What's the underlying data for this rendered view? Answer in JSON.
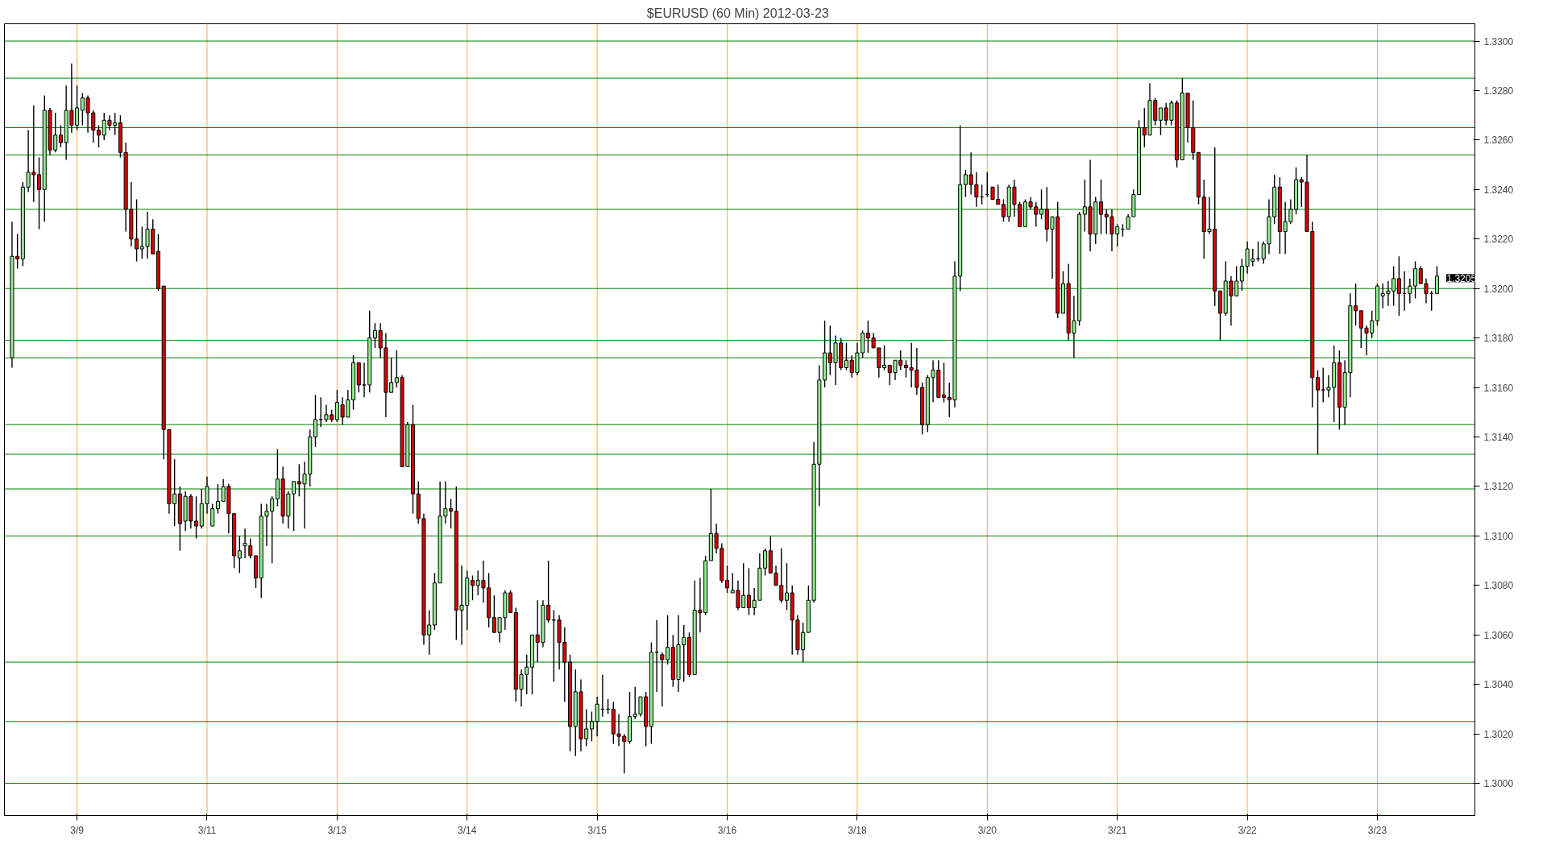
{
  "chart_data": {
    "type": "candlestick",
    "title": "$EURUSD (60 Min)  2012-03-23",
    "categories": [
      null,
      null,
      null,
      null,
      null,
      null,
      null,
      null,
      null,
      null,
      null,
      null,
      "3/9",
      null,
      null,
      null,
      null,
      null,
      null,
      null,
      null,
      null,
      null,
      null,
      null,
      null,
      null,
      null,
      null,
      null,
      null,
      null,
      null,
      null,
      null,
      null,
      "3/11",
      null,
      null,
      null,
      null,
      null,
      null,
      null,
      null,
      null,
      null,
      null,
      null,
      null,
      null,
      null,
      null,
      null,
      null,
      null,
      null,
      null,
      null,
      null,
      "3/13",
      null,
      null,
      null,
      null,
      null,
      null,
      null,
      null,
      null,
      null,
      null,
      null,
      null,
      null,
      null,
      null,
      null,
      null,
      null,
      null,
      null,
      null,
      null,
      "3/14",
      null,
      null,
      null,
      null,
      null,
      null,
      null,
      null,
      null,
      null,
      null,
      null,
      null,
      null,
      null,
      null,
      null,
      null,
      null,
      null,
      null,
      null,
      null,
      "3/15",
      null,
      null,
      null,
      null,
      null,
      null,
      null,
      null,
      null,
      null,
      null,
      null,
      null,
      null,
      null,
      null,
      null,
      null,
      null,
      null,
      null,
      null,
      null,
      "3/16",
      null,
      null,
      null,
      null,
      null,
      null,
      null,
      null,
      null,
      null,
      null,
      null,
      null,
      null,
      null,
      null,
      null,
      null,
      null,
      null,
      null,
      null,
      null,
      "3/18",
      null,
      null,
      null,
      null,
      null,
      null,
      null,
      null,
      null,
      null,
      null,
      null,
      null,
      null,
      null,
      null,
      null,
      null,
      null,
      null,
      null,
      null,
      null,
      "3/20",
      null,
      null,
      null,
      null,
      null,
      null,
      null,
      null,
      null,
      null,
      null,
      null,
      null,
      null,
      null,
      null,
      null,
      null,
      null,
      null,
      null,
      null,
      null,
      "3/21",
      null,
      null,
      null,
      null,
      null,
      null,
      null,
      null,
      null,
      null,
      null,
      null,
      null,
      null,
      null,
      null,
      null,
      null,
      null,
      null,
      null,
      null,
      null,
      "3/22",
      null,
      null,
      null,
      null,
      null,
      null,
      null,
      null,
      null,
      null,
      null,
      null,
      null,
      null,
      null,
      null,
      null,
      null,
      null,
      null,
      null,
      null,
      null,
      "3/23",
      null,
      null,
      null,
      null,
      null,
      null,
      null,
      null,
      null,
      null,
      null
    ],
    "grid": "x",
    "ohlc": [
      [
        1.3172,
        1.3227,
        1.3168,
        1.3213
      ],
      [
        1.3213,
        1.3222,
        1.3208,
        1.3212
      ],
      [
        1.3212,
        1.3243,
        1.3209,
        1.3241
      ],
      [
        1.3241,
        1.3264,
        1.3239,
        1.3247
      ],
      [
        1.3247,
        1.3274,
        1.3235,
        1.3246
      ],
      [
        1.3246,
        1.3253,
        1.3224,
        1.324
      ],
      [
        1.324,
        1.3278,
        1.3227,
        1.3272
      ],
      [
        1.3272,
        1.3273,
        1.3254,
        1.3256
      ],
      [
        1.3256,
        1.3271,
        1.3255,
        1.3262
      ],
      [
        1.3262,
        1.3266,
        1.3257,
        1.3259
      ],
      [
        1.3259,
        1.3282,
        1.3252,
        1.3272
      ],
      [
        1.3272,
        1.3291,
        1.3263,
        1.3266
      ],
      [
        1.3266,
        1.3282,
        1.3264,
        1.3273
      ],
      [
        1.3272,
        1.3279,
        1.3266,
        1.3277
      ],
      [
        1.3277,
        1.3278,
        1.3263,
        1.3271
      ],
      [
        1.3271,
        1.3272,
        1.3259,
        1.3264
      ],
      [
        1.3264,
        1.3266,
        1.3257,
        1.3262
      ],
      [
        1.3262,
        1.3271,
        1.326,
        1.3268
      ],
      [
        1.3268,
        1.327,
        1.3264,
        1.3266
      ],
      [
        1.3266,
        1.3271,
        1.3262,
        1.3267
      ],
      [
        1.3267,
        1.327,
        1.3253,
        1.3255
      ],
      [
        1.3255,
        1.3259,
        1.3223,
        1.3232
      ],
      [
        1.3232,
        1.3243,
        1.3217,
        1.322
      ],
      [
        1.322,
        1.3236,
        1.3211,
        1.3216
      ],
      [
        1.3216,
        1.3225,
        1.3212,
        1.3217
      ],
      [
        1.3217,
        1.3231,
        1.3212,
        1.3224
      ],
      [
        1.3224,
        1.3228,
        1.3214,
        1.3214
      ],
      [
        1.3215,
        1.3222,
        1.3199,
        1.32
      ],
      [
        1.3201,
        1.3201,
        1.3131,
        1.3143
      ],
      [
        1.3143,
        1.3143,
        1.3109,
        1.3113
      ],
      [
        1.3113,
        1.3131,
        1.3104,
        1.3117
      ],
      [
        1.3117,
        1.312,
        1.3094,
        1.3105
      ],
      [
        1.3106,
        1.3118,
        1.3102,
        1.3116
      ],
      [
        1.3116,
        1.3117,
        1.3103,
        1.3106
      ],
      [
        1.3106,
        1.3116,
        1.3099,
        1.3104
      ],
      [
        1.3104,
        1.3119,
        1.3103,
        1.3113
      ],
      [
        1.3113,
        1.3124,
        1.3109,
        1.312
      ],
      [
        1.3104,
        1.3113,
        1.3104,
        1.3111
      ],
      [
        1.3111,
        1.3121,
        1.3109,
        1.3114
      ],
      [
        1.3114,
        1.3123,
        1.3114,
        1.312
      ],
      [
        1.312,
        1.3121,
        1.3101,
        1.3109
      ],
      [
        1.3109,
        1.3109,
        1.3087,
        1.3092
      ],
      [
        1.3091,
        1.31,
        1.3085,
        1.3094
      ],
      [
        1.3096,
        1.3103,
        1.3091,
        1.3097
      ],
      [
        1.3096,
        1.3099,
        1.3091,
        1.3092
      ],
      [
        1.3092,
        1.3092,
        1.3079,
        1.3083
      ],
      [
        1.3083,
        1.3113,
        1.3075,
        1.3108
      ],
      [
        1.3108,
        1.3113,
        1.3096,
        1.311
      ],
      [
        1.311,
        1.3116,
        1.3089,
        1.3115
      ],
      [
        1.3115,
        1.3135,
        1.3112,
        1.3123
      ],
      [
        1.3123,
        1.3128,
        1.3105,
        1.3108
      ],
      [
        1.3108,
        1.3118,
        1.3103,
        1.3117
      ],
      [
        1.3117,
        1.3122,
        1.3102,
        1.3122
      ],
      [
        1.3122,
        1.3129,
        1.3116,
        1.3121
      ],
      [
        1.3121,
        1.313,
        1.3103,
        1.3125
      ],
      [
        1.3125,
        1.3143,
        1.312,
        1.314
      ],
      [
        1.314,
        1.3157,
        1.3136,
        1.3147
      ],
      [
        1.3147,
        1.3156,
        1.3144,
        1.3147
      ],
      [
        1.3147,
        1.3153,
        1.3146,
        1.3149
      ],
      [
        1.3149,
        1.3151,
        1.3146,
        1.3147
      ],
      [
        1.3147,
        1.3159,
        1.3146,
        1.3154
      ],
      [
        1.3153,
        1.3156,
        1.3145,
        1.3148
      ],
      [
        1.3148,
        1.3159,
        1.3148,
        1.3155
      ],
      [
        1.3155,
        1.3173,
        1.3151,
        1.317
      ],
      [
        1.317,
        1.317,
        1.3158,
        1.3161
      ],
      [
        1.3161,
        1.317,
        1.3156,
        1.3161
      ],
      [
        1.3161,
        1.3191,
        1.3158,
        1.318
      ],
      [
        1.318,
        1.3186,
        1.3176,
        1.3183
      ],
      [
        1.3183,
        1.3186,
        1.3172,
        1.3176
      ],
      [
        1.3176,
        1.3182,
        1.3148,
        1.3158
      ],
      [
        1.3158,
        1.3172,
        1.3158,
        1.3162
      ],
      [
        1.3162,
        1.3175,
        1.316,
        1.3164
      ],
      [
        1.3164,
        1.3165,
        1.3128,
        1.3128
      ],
      [
        1.3128,
        1.3146,
        1.3128,
        1.3145
      ],
      [
        1.3145,
        1.3153,
        1.3109,
        1.3117
      ],
      [
        1.3117,
        1.3122,
        1.3105,
        1.3107
      ],
      [
        1.3107,
        1.3109,
        1.3056,
        1.306
      ],
      [
        1.306,
        1.307,
        1.3052,
        1.3064
      ],
      [
        1.3064,
        1.3085,
        1.3062,
        1.3081
      ],
      [
        1.3081,
        1.3122,
        1.3081,
        1.3108
      ],
      [
        1.3108,
        1.3122,
        1.3105,
        1.3111
      ],
      [
        1.3111,
        1.3115,
        1.3103,
        1.311
      ],
      [
        1.311,
        1.312,
        1.3058,
        1.307
      ],
      [
        1.307,
        1.3088,
        1.3056,
        1.3072
      ],
      [
        1.3072,
        1.3086,
        1.3062,
        1.3083
      ],
      [
        1.3082,
        1.3084,
        1.3074,
        1.308
      ],
      [
        1.308,
        1.3086,
        1.3076,
        1.3082
      ],
      [
        1.3082,
        1.309,
        1.3073,
        1.3079
      ],
      [
        1.3079,
        1.3085,
        1.3063,
        1.3067
      ],
      [
        1.3067,
        1.3076,
        1.3061,
        1.3061
      ],
      [
        1.3061,
        1.3067,
        1.3057,
        1.3067
      ],
      [
        1.3067,
        1.3078,
        1.3062,
        1.3077
      ],
      [
        1.3077,
        1.3078,
        1.3069,
        1.3069
      ],
      [
        1.3069,
        1.3071,
        1.3033,
        1.3038
      ],
      [
        1.3038,
        1.3046,
        1.3031,
        1.3044
      ],
      [
        1.3044,
        1.3052,
        1.3036,
        1.3047
      ],
      [
        1.3047,
        1.306,
        1.3036,
        1.306
      ],
      [
        1.306,
        1.3074,
        1.3049,
        1.3057
      ],
      [
        1.3057,
        1.3074,
        1.3055,
        1.3072
      ],
      [
        1.3072,
        1.309,
        1.3065,
        1.3066
      ],
      [
        1.3066,
        1.307,
        1.3041,
        1.3066
      ],
      [
        1.3066,
        1.3068,
        1.3046,
        1.3057
      ],
      [
        1.3057,
        1.3063,
        1.3033,
        1.3049
      ],
      [
        1.3049,
        1.3052,
        1.3013,
        1.3023
      ],
      [
        1.3023,
        1.3046,
        1.3011,
        1.3037
      ],
      [
        1.3037,
        1.3042,
        1.3013,
        1.3018
      ],
      [
        1.3018,
        1.303,
        1.3015,
        1.3022
      ],
      [
        1.3022,
        1.3029,
        1.3017,
        1.3025
      ],
      [
        1.3025,
        1.3035,
        1.3019,
        1.3032
      ],
      [
        1.303,
        1.3044,
        1.3027,
        1.303
      ],
      [
        1.303,
        1.3034,
        1.3028,
        1.303
      ],
      [
        1.303,
        1.3033,
        1.3016,
        1.302
      ],
      [
        1.302,
        1.3028,
        1.3015,
        1.3019
      ],
      [
        1.3019,
        1.302,
        1.3004,
        1.3017
      ],
      [
        1.3017,
        1.3037,
        1.3016,
        1.3027
      ],
      [
        1.3027,
        1.3039,
        1.3026,
        1.3028
      ],
      [
        1.3028,
        1.3035,
        1.3027,
        1.3035
      ],
      [
        1.3035,
        1.3037,
        1.3015,
        1.3023
      ],
      [
        1.3023,
        1.3057,
        1.3016,
        1.3053
      ],
      [
        1.3053,
        1.3066,
        1.3037,
        1.3053
      ],
      [
        1.3052,
        1.3053,
        1.3031,
        1.305
      ],
      [
        1.305,
        1.3068,
        1.3048,
        1.3055
      ],
      [
        1.3055,
        1.306,
        1.3039,
        1.3042
      ],
      [
        1.3042,
        1.3068,
        1.3037,
        1.3056
      ],
      [
        1.3056,
        1.3064,
        1.3041,
        1.3059
      ],
      [
        1.3059,
        1.3061,
        1.3043,
        1.3044
      ],
      [
        1.3044,
        1.3082,
        1.3044,
        1.307
      ],
      [
        1.307,
        1.3083,
        1.3061,
        1.3069
      ],
      [
        1.3069,
        1.3092,
        1.3068,
        1.309
      ],
      [
        1.309,
        1.3119,
        1.309,
        1.3101
      ],
      [
        1.3101,
        1.3105,
        1.3093,
        1.3095
      ],
      [
        1.3095,
        1.3097,
        1.3081,
        1.3082
      ],
      [
        1.3082,
        1.3088,
        1.3077,
        1.3079
      ],
      [
        1.3077,
        1.3085,
        1.3077,
        1.3078
      ],
      [
        1.3078,
        1.3082,
        1.307,
        1.3071
      ],
      [
        1.3071,
        1.3089,
        1.3071,
        1.3076
      ],
      [
        1.3076,
        1.3087,
        1.3068,
        1.3071
      ],
      [
        1.3071,
        1.3079,
        1.3068,
        1.3074
      ],
      [
        1.3074,
        1.3093,
        1.3074,
        1.3087
      ],
      [
        1.3087,
        1.3095,
        1.3084,
        1.3094
      ],
      [
        1.3094,
        1.31,
        1.3085,
        1.3085
      ],
      [
        1.3085,
        1.3088,
        1.308,
        1.308
      ],
      [
        1.308,
        1.3095,
        1.3073,
        1.3074
      ],
      [
        1.3074,
        1.3089,
        1.307,
        1.3077
      ],
      [
        1.3077,
        1.308,
        1.3052,
        1.3066
      ],
      [
        1.3066,
        1.3068,
        1.3052,
        1.3054
      ],
      [
        1.3054,
        1.3065,
        1.3049,
        1.3061
      ],
      [
        1.3061,
        1.308,
        1.3061,
        1.3074
      ],
      [
        1.3074,
        1.3138,
        1.3073,
        1.3129
      ],
      [
        1.3129,
        1.3169,
        1.3112,
        1.3163
      ],
      [
        1.3163,
        1.3187,
        1.316,
        1.3174
      ],
      [
        1.3174,
        1.3185,
        1.3165,
        1.317
      ],
      [
        1.317,
        1.3181,
        1.3161,
        1.3178
      ],
      [
        1.3178,
        1.318,
        1.3167,
        1.3168
      ],
      [
        1.3168,
        1.3178,
        1.3167,
        1.3171
      ],
      [
        1.3171,
        1.3173,
        1.3164,
        1.3166
      ],
      [
        1.3166,
        1.3178,
        1.3165,
        1.3174
      ],
      [
        1.3174,
        1.3183,
        1.3172,
        1.3182
      ],
      [
        1.3182,
        1.3187,
        1.3174,
        1.318
      ],
      [
        1.318,
        1.3182,
        1.3176,
        1.3176
      ],
      [
        1.3176,
        1.3176,
        1.3164,
        1.3168
      ],
      [
        1.3168,
        1.3177,
        1.3167,
        1.3169
      ],
      [
        1.3169,
        1.3169,
        1.3161,
        1.3166
      ],
      [
        1.3166,
        1.3171,
        1.3163,
        1.3171
      ],
      [
        1.3171,
        1.3175,
        1.3167,
        1.3169
      ],
      [
        1.3169,
        1.3171,
        1.3164,
        1.3168
      ],
      [
        1.3168,
        1.3178,
        1.316,
        1.3167
      ],
      [
        1.3167,
        1.3176,
        1.3157,
        1.316
      ],
      [
        1.316,
        1.3162,
        1.3141,
        1.3145
      ],
      [
        1.3145,
        1.3165,
        1.3142,
        1.3164
      ],
      [
        1.3164,
        1.3171,
        1.3154,
        1.3167
      ],
      [
        1.3167,
        1.3171,
        1.3156,
        1.3156
      ],
      [
        1.3157,
        1.317,
        1.3154,
        1.3156
      ],
      [
        1.3156,
        1.3162,
        1.3148,
        1.3155
      ],
      [
        1.3155,
        1.3211,
        1.3152,
        1.3205
      ],
      [
        1.3205,
        1.3266,
        1.3199,
        1.3242
      ],
      [
        1.3242,
        1.3248,
        1.3237,
        1.3246
      ],
      [
        1.3246,
        1.3255,
        1.3238,
        1.3242
      ],
      [
        1.3242,
        1.3247,
        1.3233,
        1.3237
      ],
      [
        1.3237,
        1.3242,
        1.3234,
        1.3237
      ],
      [
        1.3238,
        1.3247,
        1.3237,
        1.3238
      ],
      [
        1.3241,
        1.3241,
        1.3236,
        1.3236
      ],
      [
        1.3236,
        1.3242,
        1.3234,
        1.3234
      ],
      [
        1.3234,
        1.3236,
        1.3227,
        1.3229
      ],
      [
        1.3229,
        1.3242,
        1.3227,
        1.3241
      ],
      [
        1.3241,
        1.3244,
        1.3229,
        1.3234
      ],
      [
        1.3234,
        1.3235,
        1.3225,
        1.3225
      ],
      [
        1.3225,
        1.3236,
        1.3225,
        1.3235
      ],
      [
        1.3235,
        1.3237,
        1.3232,
        1.3233
      ],
      [
        1.3233,
        1.3235,
        1.3225,
        1.323
      ],
      [
        1.323,
        1.324,
        1.3228,
        1.3232
      ],
      [
        1.3232,
        1.3241,
        1.3219,
        1.3224
      ],
      [
        1.3224,
        1.3229,
        1.3204,
        1.3229
      ],
      [
        1.3229,
        1.3235,
        1.3188,
        1.319
      ],
      [
        1.319,
        1.3207,
        1.319,
        1.3202
      ],
      [
        1.3202,
        1.321,
        1.3179,
        1.3182
      ],
      [
        1.3182,
        1.3197,
        1.3172,
        1.3187
      ],
      [
        1.3187,
        1.3231,
        1.3185,
        1.323
      ],
      [
        1.323,
        1.3244,
        1.3223,
        1.3233
      ],
      [
        1.3233,
        1.3252,
        1.3215,
        1.3222
      ],
      [
        1.3222,
        1.3237,
        1.3218,
        1.3235
      ],
      [
        1.3235,
        1.3244,
        1.3222,
        1.323
      ],
      [
        1.323,
        1.3232,
        1.3222,
        1.3229
      ],
      [
        1.3229,
        1.3232,
        1.3215,
        1.3222
      ],
      [
        1.3222,
        1.3226,
        1.3217,
        1.3225
      ],
      [
        1.3224,
        1.3226,
        1.3221,
        1.3224
      ],
      [
        1.3224,
        1.323,
        1.3224,
        1.3229
      ],
      [
        1.3229,
        1.324,
        1.3229,
        1.3238
      ],
      [
        1.3238,
        1.3268,
        1.3238,
        1.3265
      ],
      [
        1.3265,
        1.3273,
        1.3257,
        1.3262
      ],
      [
        1.3262,
        1.3283,
        1.3262,
        1.3276
      ],
      [
        1.3276,
        1.3277,
        1.3266,
        1.3268
      ],
      [
        1.3268,
        1.3273,
        1.3262,
        1.3273
      ],
      [
        1.3273,
        1.3275,
        1.3266,
        1.3268
      ],
      [
        1.3268,
        1.3276,
        1.3266,
        1.3275
      ],
      [
        1.3275,
        1.3276,
        1.3249,
        1.3252
      ],
      [
        1.3252,
        1.3285,
        1.3252,
        1.3279
      ],
      [
        1.3279,
        1.3279,
        1.3259,
        1.3265
      ],
      [
        1.3265,
        1.3276,
        1.3252,
        1.3255
      ],
      [
        1.3255,
        1.3255,
        1.3234,
        1.3237
      ],
      [
        1.3237,
        1.3244,
        1.3212,
        1.3223
      ],
      [
        1.3223,
        1.3237,
        1.3222,
        1.3224
      ],
      [
        1.3224,
        1.3257,
        1.3193,
        1.3199
      ],
      [
        1.3199,
        1.3199,
        1.3179,
        1.319
      ],
      [
        1.319,
        1.3211,
        1.3189,
        1.3203
      ],
      [
        1.3203,
        1.3205,
        1.3185,
        1.3197
      ],
      [
        1.3197,
        1.3209,
        1.3197,
        1.3203
      ],
      [
        1.3203,
        1.3212,
        1.3199,
        1.3209
      ],
      [
        1.3209,
        1.3219,
        1.3206,
        1.3216
      ],
      [
        1.3211,
        1.3216,
        1.3209,
        1.3212
      ],
      [
        1.3212,
        1.3219,
        1.3211,
        1.3212
      ],
      [
        1.3212,
        1.3219,
        1.321,
        1.3218
      ],
      [
        1.3218,
        1.3236,
        1.3214,
        1.3229
      ],
      [
        1.3229,
        1.3246,
        1.3226,
        1.3241
      ],
      [
        1.3241,
        1.3245,
        1.3214,
        1.3223
      ],
      [
        1.3223,
        1.3235,
        1.3214,
        1.3227
      ],
      [
        1.3227,
        1.3236,
        1.3226,
        1.3232
      ],
      [
        1.3232,
        1.3249,
        1.323,
        1.3244
      ],
      [
        1.3244,
        1.3245,
        1.3233,
        1.3243
      ],
      [
        1.3243,
        1.3254,
        1.3223,
        1.3223
      ],
      [
        1.3223,
        1.3227,
        1.3152,
        1.3164
      ],
      [
        1.3164,
        1.3167,
        1.3133,
        1.3159
      ],
      [
        1.3159,
        1.3168,
        1.3154,
        1.3159
      ],
      [
        1.3159,
        1.3165,
        1.3156,
        1.316
      ],
      [
        1.316,
        1.3177,
        1.3146,
        1.317
      ],
      [
        1.317,
        1.3175,
        1.3143,
        1.3152
      ],
      [
        1.3152,
        1.3171,
        1.3145,
        1.3166
      ],
      [
        1.3166,
        1.3198,
        1.3156,
        1.3193
      ],
      [
        1.3193,
        1.3202,
        1.3185,
        1.3191
      ],
      [
        1.3191,
        1.3191,
        1.3176,
        1.3184
      ],
      [
        1.3184,
        1.3185,
        1.3173,
        1.3182
      ],
      [
        1.3182,
        1.3191,
        1.318,
        1.3187
      ],
      [
        1.3187,
        1.3202,
        1.3185,
        1.3201
      ],
      [
        1.3197,
        1.3202,
        1.3192,
        1.3198
      ],
      [
        1.3198,
        1.3203,
        1.3193,
        1.3199
      ],
      [
        1.3199,
        1.3209,
        1.3193,
        1.3204
      ],
      [
        1.3204,
        1.3213,
        1.3189,
        1.3198
      ],
      [
        1.3198,
        1.3207,
        1.3191,
        1.3198
      ],
      [
        1.3198,
        1.3204,
        1.3194,
        1.3201
      ],
      [
        1.3201,
        1.3211,
        1.3196,
        1.3208
      ],
      [
        1.3208,
        1.3209,
        1.3202,
        1.3202
      ],
      [
        1.3202,
        1.3204,
        1.3194,
        1.3198
      ],
      [
        1.3198,
        1.3199,
        1.3191,
        1.3198
      ],
      [
        1.3198,
        1.3209,
        1.3198,
        1.3205
      ]
    ],
    "colors": [
      "#90ee90",
      "#dd0000",
      "#90ee90",
      "#90ee90",
      "#dd0000",
      "#dd0000",
      "#90ee90",
      "#dd0000",
      "#90ee90",
      "#dd0000",
      "#90ee90",
      "#dd0000",
      "#90ee90",
      "#90ee90",
      "#dd0000",
      "#dd0000",
      "#dd0000",
      "#90ee90",
      "#dd0000",
      "#90ee90",
      "#dd0000",
      "#dd0000",
      "#dd0000",
      "#dd0000",
      "#90ee90",
      "#90ee90",
      "#dd0000",
      "#dd0000",
      "#dd0000",
      "#dd0000",
      "#90ee90",
      "#dd0000",
      "#90ee90",
      "#dd0000",
      "#dd0000",
      "#90ee90",
      "#90ee90",
      "#90ee90",
      "#90ee90",
      "#90ee90",
      "#dd0000",
      "#dd0000",
      "#90ee90",
      "#90ee90",
      "#dd0000",
      "#dd0000",
      "#90ee90",
      "#90ee90",
      "#90ee90",
      "#90ee90",
      "#dd0000",
      "#90ee90",
      "#90ee90",
      "#dd0000",
      "#90ee90",
      "#90ee90",
      "#90ee90",
      "#000000",
      "#90ee90",
      "#dd0000",
      "#90ee90",
      "#dd0000",
      "#90ee90",
      "#90ee90",
      "#dd0000",
      "#000000",
      "#90ee90",
      "#90ee90",
      "#dd0000",
      "#dd0000",
      "#90ee90",
      "#90ee90",
      "#dd0000",
      "#90ee90",
      "#dd0000",
      "#dd0000",
      "#dd0000",
      "#90ee90",
      "#90ee90",
      "#90ee90",
      "#90ee90",
      "#dd0000",
      "#dd0000",
      "#90ee90",
      "#90ee90",
      "#dd0000",
      "#90ee90",
      "#dd0000",
      "#dd0000",
      "#dd0000",
      "#90ee90",
      "#90ee90",
      "#dd0000",
      "#dd0000",
      "#90ee90",
      "#90ee90",
      "#90ee90",
      "#dd0000",
      "#90ee90",
      "#dd0000",
      "#000000",
      "#dd0000",
      "#dd0000",
      "#dd0000",
      "#90ee90",
      "#dd0000",
      "#90ee90",
      "#90ee90",
      "#90ee90",
      "#000000",
      "#000000",
      "#dd0000",
      "#dd0000",
      "#dd0000",
      "#90ee90",
      "#90ee90",
      "#90ee90",
      "#dd0000",
      "#90ee90",
      "#000000",
      "#dd0000",
      "#90ee90",
      "#dd0000",
      "#90ee90",
      "#90ee90",
      "#dd0000",
      "#90ee90",
      "#dd0000",
      "#90ee90",
      "#90ee90",
      "#dd0000",
      "#dd0000",
      "#dd0000",
      "#90ee90",
      "#dd0000",
      "#90ee90",
      "#dd0000",
      "#90ee90",
      "#90ee90",
      "#90ee90",
      "#dd0000",
      "#dd0000",
      "#dd0000",
      "#90ee90",
      "#dd0000",
      "#dd0000",
      "#90ee90",
      "#90ee90",
      "#90ee90",
      "#90ee90",
      "#90ee90",
      "#dd0000",
      "#90ee90",
      "#dd0000",
      "#90ee90",
      "#dd0000",
      "#90ee90",
      "#90ee90",
      "#dd0000",
      "#dd0000",
      "#dd0000",
      "#90ee90",
      "#dd0000",
      "#90ee90",
      "#dd0000",
      "#dd0000",
      "#dd0000",
      "#dd0000",
      "#dd0000",
      "#90ee90",
      "#90ee90",
      "#dd0000",
      "#dd0000",
      "#dd0000",
      "#90ee90",
      "#90ee90",
      "#90ee90",
      "#dd0000",
      "#dd0000",
      "#000000",
      "#000000",
      "#dd0000",
      "#dd0000",
      "#dd0000",
      "#90ee90",
      "#dd0000",
      "#dd0000",
      "#90ee90",
      "#dd0000",
      "#dd0000",
      "#90ee90",
      "#dd0000",
      "#90ee90",
      "#dd0000",
      "#90ee90",
      "#dd0000",
      "#90ee90",
      "#90ee90",
      "#90ee90",
      "#dd0000",
      "#90ee90",
      "#dd0000",
      "#dd0000",
      "#dd0000",
      "#90ee90",
      "#000000",
      "#90ee90",
      "#90ee90",
      "#90ee90",
      "#dd0000",
      "#90ee90",
      "#dd0000",
      "#90ee90",
      "#dd0000",
      "#90ee90",
      "#dd0000",
      "#90ee90",
      "#dd0000",
      "#dd0000",
      "#dd0000",
      "#dd0000",
      "#90ee90",
      "#dd0000",
      "#dd0000",
      "#90ee90",
      "#dd0000",
      "#90ee90",
      "#90ee90",
      "#90ee90",
      "#90ee90",
      "#000000",
      "#90ee90",
      "#90ee90",
      "#90ee90",
      "#dd0000",
      "#90ee90",
      "#90ee90",
      "#90ee90",
      "#dd0000",
      "#dd0000",
      "#dd0000",
      "#dd0000",
      "#000000",
      "#90ee90",
      "#90ee90",
      "#dd0000",
      "#90ee90",
      "#90ee90",
      "#dd0000",
      "#dd0000",
      "#dd0000",
      "#90ee90",
      "#90ee90",
      "#90ee90",
      "#90ee90",
      "#90ee90",
      "#dd0000",
      "#000000",
      "#90ee90",
      "#90ee90",
      "#dd0000",
      "#dd0000",
      "#000000",
      "#90ee90"
    ],
    "ylim": [
      1.2987,
      1.3307
    ],
    "yticks": [
      {
        "value": 1.3,
        "label": "1.3000"
      },
      {
        "value": 1.302,
        "label": "1.3020"
      },
      {
        "value": 1.304,
        "label": "1.3040"
      },
      {
        "value": 1.306,
        "label": "1.3060"
      },
      {
        "value": 1.308,
        "label": "1.3080"
      },
      {
        "value": 1.31,
        "label": "1.3100"
      },
      {
        "value": 1.312,
        "label": "1.3120"
      },
      {
        "value": 1.314,
        "label": "1.3140"
      },
      {
        "value": 1.316,
        "label": "1.3160"
      },
      {
        "value": 1.318,
        "label": "1.3180"
      },
      {
        "value": 1.32,
        "label": "1.3200"
      },
      {
        "value": 1.322,
        "label": "1.3220"
      },
      {
        "value": 1.324,
        "label": "1.3240"
      },
      {
        "value": 1.326,
        "label": "1.3260"
      },
      {
        "value": 1.328,
        "label": "1.3280"
      },
      {
        "value": 1.33,
        "label": "1.3300"
      }
    ],
    "ref_lines": [
      {
        "axis": "y",
        "value": 1.33,
        "color": "#008000"
      },
      {
        "axis": "y",
        "value": 1.3285,
        "color": "#008000"
      },
      {
        "axis": "y",
        "value": 1.3265,
        "color": "#008000"
      },
      {
        "axis": "y",
        "value": 1.3254,
        "color": "#008000"
      },
      {
        "axis": "y",
        "value": 1.3232,
        "color": "#008000"
      },
      {
        "axis": "y",
        "value": 1.32,
        "color": "#008000"
      },
      {
        "axis": "y",
        "value": 1.3179,
        "color": "#008000"
      },
      {
        "axis": "y",
        "value": 1.3172,
        "color": "#008000"
      },
      {
        "axis": "y",
        "value": 1.3145,
        "color": "#008000"
      },
      {
        "axis": "y",
        "value": 1.3133,
        "color": "#008000"
      },
      {
        "axis": "y",
        "value": 1.3119,
        "color": "#008000"
      },
      {
        "axis": "y",
        "value": 1.31,
        "color": "#008000"
      },
      {
        "axis": "y",
        "value": 1.3049,
        "color": "#008000"
      },
      {
        "axis": "y",
        "value": 1.3025,
        "color": "#008000"
      },
      {
        "axis": "y",
        "value": 1.3,
        "color": "#008000"
      }
    ],
    "annotations": [
      "1.3205"
    ]
  }
}
